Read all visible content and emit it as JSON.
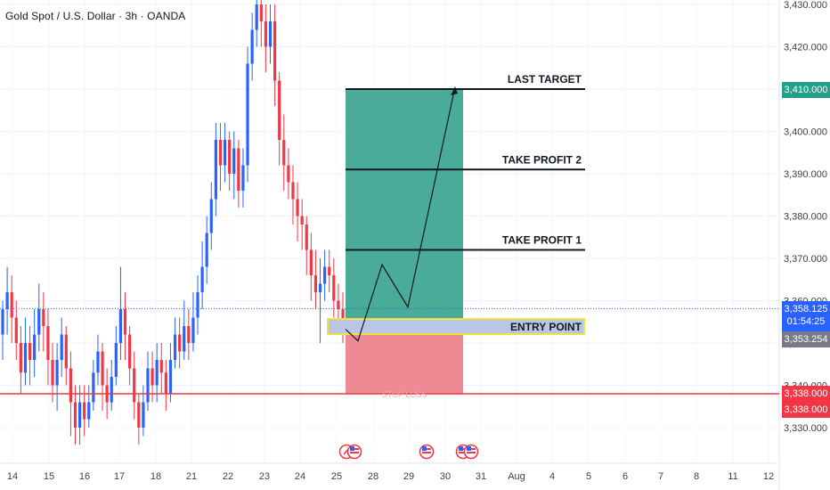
{
  "header": {
    "title": "Gold Spot / U.S. Dollar · 3h · OANDA"
  },
  "chart_data": {
    "type": "candlestick",
    "symbol": "Gold Spot / U.S. Dollar",
    "interval": "3h",
    "source": "OANDA",
    "ylim": [
      3325,
      3432
    ],
    "y_ticks": [
      "3,430.000",
      "3,420.000",
      "3,410.000",
      "3,400.000",
      "3,390.000",
      "3,380.000",
      "3,370.000",
      "3,360.000",
      "3,350.000",
      "3,340.000",
      "3,330.000"
    ],
    "y_tick_values": [
      3430,
      3420,
      3410,
      3400,
      3390,
      3380,
      3370,
      3360,
      3350,
      3340,
      3330
    ],
    "x_ticks": [
      "14",
      "15",
      "16",
      "17",
      "18",
      "21",
      "22",
      "23",
      "24",
      "25",
      "28",
      "29",
      "30",
      "31",
      "Aug",
      "4",
      "5",
      "6",
      "7",
      "8",
      "11",
      "12"
    ],
    "current_price": "3,358.125",
    "countdown": "01:54:25",
    "entry_price_tag": "3,353.254",
    "target_price_tag": "3,410.000",
    "stop_price_tags": [
      "3,338.000",
      "3,338.000"
    ],
    "levels": [
      {
        "label": "LAST TARGET",
        "price": 3410
      },
      {
        "label": "TAKE PROFIT 2",
        "price": 3392
      },
      {
        "label": "TAKE PROFIT 1",
        "price": 3372
      },
      {
        "label": "ENTRY POINT",
        "price": 3353.25
      },
      {
        "label": "STOP LOSS",
        "price": 3338
      }
    ],
    "projection_path": [
      3353.25,
      3350.5,
      3368.5,
      3358.5,
      3410.5
    ],
    "candles": [
      [
        3352,
        3358,
        3346,
        3360
      ],
      [
        3358,
        3362,
        3352,
        3368
      ],
      [
        3362,
        3356,
        3350,
        3366
      ],
      [
        3356,
        3350,
        3346,
        3360
      ],
      [
        3350,
        3343,
        3338,
        3354
      ],
      [
        3343,
        3350,
        3340,
        3356
      ],
      [
        3350,
        3346,
        3340,
        3354
      ],
      [
        3346,
        3352,
        3342,
        3358
      ],
      [
        3352,
        3358,
        3348,
        3364
      ],
      [
        3358,
        3354,
        3348,
        3362
      ],
      [
        3354,
        3346,
        3340,
        3358
      ],
      [
        3346,
        3340,
        3336,
        3350
      ],
      [
        3340,
        3346,
        3334,
        3350
      ],
      [
        3346,
        3352,
        3342,
        3356
      ],
      [
        3352,
        3344,
        3340,
        3354
      ],
      [
        3344,
        3336,
        3328,
        3348
      ],
      [
        3336,
        3330,
        3326,
        3340
      ],
      [
        3330,
        3336,
        3326,
        3340
      ],
      [
        3336,
        3332,
        3328,
        3340
      ],
      [
        3332,
        3336,
        3330,
        3340
      ],
      [
        3336,
        3343,
        3334,
        3346
      ],
      [
        3343,
        3348,
        3340,
        3352
      ],
      [
        3348,
        3340,
        3334,
        3350
      ],
      [
        3340,
        3336,
        3332,
        3344
      ],
      [
        3336,
        3342,
        3334,
        3346
      ],
      [
        3342,
        3350,
        3340,
        3354
      ],
      [
        3350,
        3358,
        3346,
        3368
      ],
      [
        3358,
        3352,
        3346,
        3362
      ],
      [
        3352,
        3344,
        3340,
        3354
      ],
      [
        3344,
        3336,
        3332,
        3348
      ],
      [
        3336,
        3330,
        3326,
        3338
      ],
      [
        3330,
        3336,
        3328,
        3340
      ],
      [
        3336,
        3344,
        3334,
        3348
      ],
      [
        3344,
        3340,
        3336,
        3348
      ],
      [
        3340,
        3346,
        3336,
        3350
      ],
      [
        3346,
        3343,
        3338,
        3350
      ],
      [
        3343,
        3338,
        3334,
        3346
      ],
      [
        3338,
        3346,
        3336,
        3350
      ],
      [
        3346,
        3352,
        3344,
        3356
      ],
      [
        3352,
        3348,
        3344,
        3356
      ],
      [
        3348,
        3354,
        3346,
        3360
      ],
      [
        3354,
        3350,
        3346,
        3358
      ],
      [
        3350,
        3356,
        3348,
        3362
      ],
      [
        3356,
        3362,
        3352,
        3366
      ],
      [
        3362,
        3368,
        3358,
        3374
      ],
      [
        3368,
        3376,
        3364,
        3380
      ],
      [
        3376,
        3384,
        3372,
        3388
      ],
      [
        3384,
        3398,
        3380,
        3402
      ],
      [
        3398,
        3392,
        3386,
        3402
      ],
      [
        3392,
        3398,
        3388,
        3402
      ],
      [
        3398,
        3390,
        3386,
        3400
      ],
      [
        3390,
        3396,
        3384,
        3400
      ],
      [
        3396,
        3386,
        3382,
        3398
      ],
      [
        3386,
        3392,
        3382,
        3396
      ],
      [
        3392,
        3416,
        3388,
        3420
      ],
      [
        3416,
        3424,
        3412,
        3428
      ],
      [
        3424,
        3430,
        3420,
        3434
      ],
      [
        3430,
        3426,
        3420,
        3434
      ],
      [
        3426,
        3420,
        3414,
        3430
      ],
      [
        3420,
        3426,
        3416,
        3430
      ],
      [
        3426,
        3412,
        3406,
        3430
      ],
      [
        3412,
        3398,
        3392,
        3414
      ],
      [
        3398,
        3392,
        3386,
        3404
      ],
      [
        3392,
        3388,
        3384,
        3396
      ],
      [
        3388,
        3384,
        3378,
        3392
      ],
      [
        3384,
        3380,
        3374,
        3388
      ],
      [
        3380,
        3378,
        3372,
        3384
      ],
      [
        3378,
        3372,
        3366,
        3380
      ],
      [
        3372,
        3366,
        3360,
        3376
      ],
      [
        3366,
        3362,
        3358,
        3372
      ],
      [
        3362,
        3364,
        3350,
        3370
      ],
      [
        3364,
        3368,
        3360,
        3372
      ],
      [
        3368,
        3366,
        3362,
        3372
      ],
      [
        3366,
        3360,
        3356,
        3370
      ],
      [
        3360,
        3358,
        3354,
        3364
      ],
      [
        3358,
        3355,
        3350,
        3362
      ]
    ]
  }
}
